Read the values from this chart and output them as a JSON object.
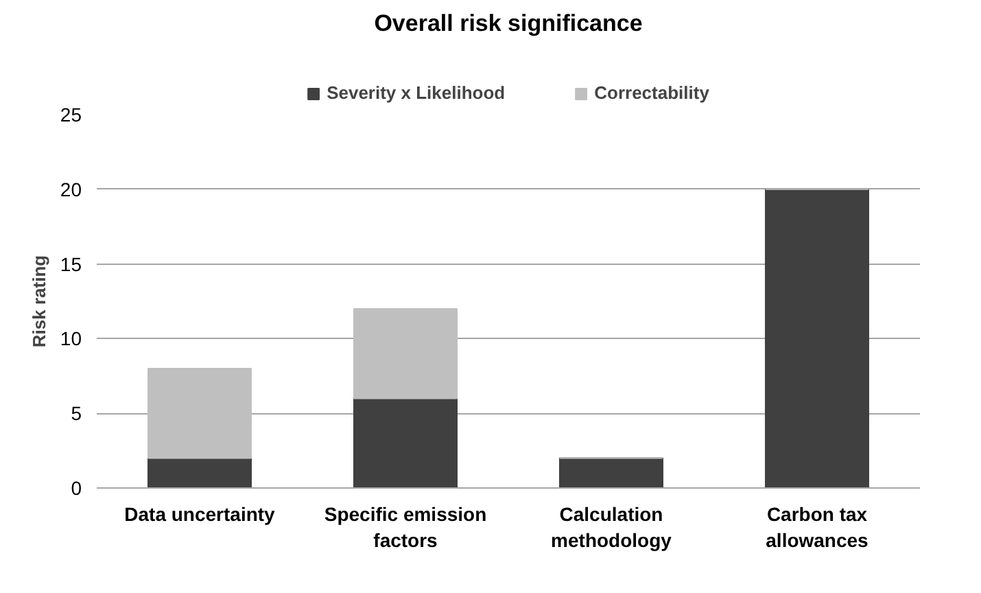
{
  "chart_data": {
    "type": "bar",
    "title": "Overall risk significance",
    "ylabel": "Risk rating",
    "stacked": true,
    "categories": [
      "Data uncertainty",
      "Specific emission factors",
      "Calculation methodology",
      "Carbon tax allowances"
    ],
    "series": [
      {
        "name": "Severity x Likelihood",
        "color": "#404040",
        "values": [
          2,
          6,
          2,
          20
        ]
      },
      {
        "name": "Correctability",
        "color": "#bfbfbf",
        "values": [
          6,
          6,
          0,
          0
        ]
      }
    ],
    "ylim": [
      0,
      25
    ],
    "yticks": [
      0,
      5,
      10,
      15,
      20,
      25
    ],
    "grid": "y",
    "legend": "top"
  }
}
